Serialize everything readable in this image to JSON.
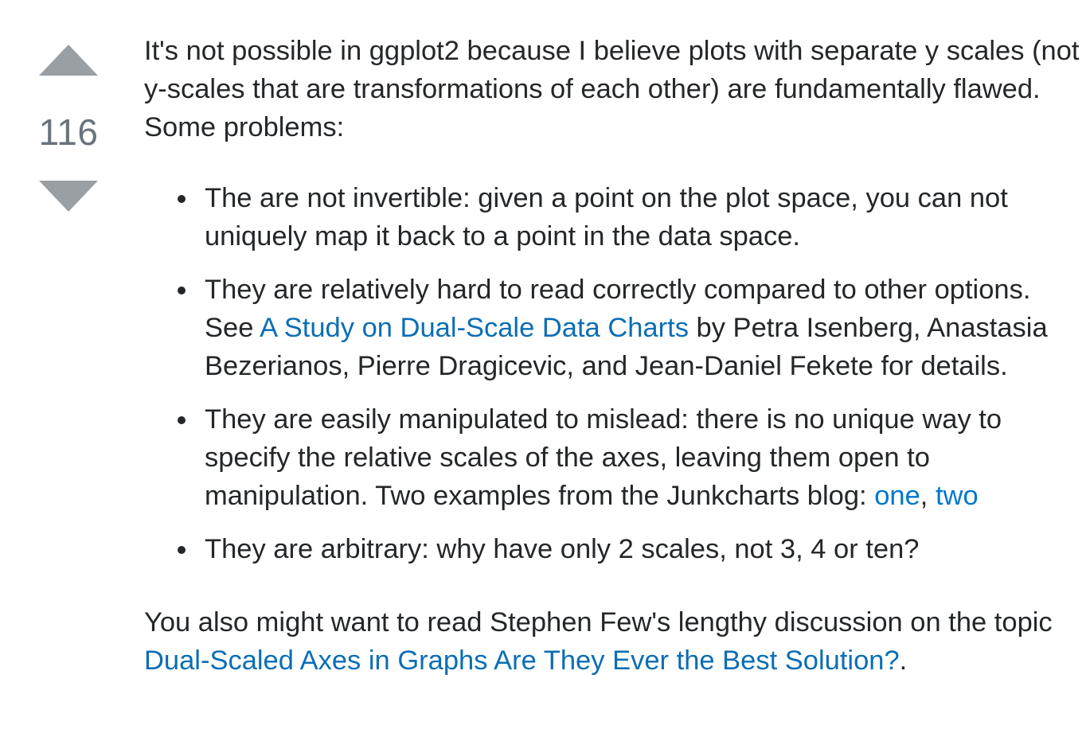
{
  "votes": {
    "count": "116",
    "upvote_label": "Up vote",
    "downvote_label": "Down vote"
  },
  "post": {
    "intro": "It's not possible in ggplot2 because I believe plots with separate y scales (not y-scales that are transformations of each other) are fundamentally flawed. Some problems:",
    "bullets": [
      {
        "text": "The are not invertible: given a point on the plot space, you can not uniquely map it back to a point in the data space."
      },
      {
        "text_before": "They are relatively hard to read correctly compared to other options. See ",
        "link_text": "A Study on Dual-Scale Data Charts",
        "text_after": " by Petra Isenberg, Anastasia Bezerianos, Pierre Dragicevic, and Jean-Daniel Fekete for details."
      },
      {
        "text_before": "They are easily manipulated to mislead: there is no unique way to specify the relative scales of the axes, leaving them open to manipulation. Two examples from the Junkcharts blog: ",
        "link1_text": "one",
        "separator": ", ",
        "link2_text": "two"
      },
      {
        "text": "They are arbitrary: why have only 2 scales, not 3, 4 or ten?"
      }
    ],
    "outro_before": "You also might want to read Stephen Few's lengthy discussion on the topic ",
    "outro_link_text": "Dual-Scaled Axes in Graphs Are They Ever the Best Solution?",
    "outro_after": "."
  },
  "colors": {
    "text": "#242729",
    "link": "#0b6eb5",
    "vote_arrow": "#9a9fa4",
    "vote_count": "#6a737c"
  }
}
